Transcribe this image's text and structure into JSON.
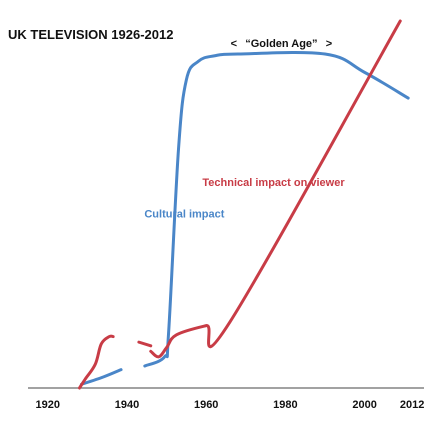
{
  "chart_data": {
    "type": "line",
    "title": "UK TELEVISION 1926-2012",
    "xlabel": "",
    "ylabel": "",
    "x_ticks": [
      {
        "value": 1920,
        "label": "1920"
      },
      {
        "value": 1940,
        "label": "1940"
      },
      {
        "value": 1960,
        "label": "1960"
      },
      {
        "value": 1980,
        "label": "1980"
      },
      {
        "value": 2000,
        "label": "2000"
      },
      {
        "value": 2012,
        "label": "2012"
      }
    ],
    "xlim": [
      1915,
      2015
    ],
    "ylim": [
      0,
      100
    ],
    "grid": false,
    "series": [
      {
        "key": "cultural",
        "name": "Cultural impact",
        "color": "#4a86c8",
        "segments": [
          [
            [
              1928.5,
              1
            ],
            [
              1934,
              3
            ],
            [
              1938.5,
              5
            ]
          ],
          [
            [
              1944.5,
              6
            ],
            [
              1949.5,
              8.5
            ],
            [
              1950.5,
              15
            ],
            [
              1953,
              65
            ],
            [
              1955,
              84
            ],
            [
              1958,
              89
            ],
            [
              1962,
              90.5
            ],
            [
              1968,
              91
            ],
            [
              1990,
              91
            ],
            [
              2000,
              86
            ],
            [
              2011,
              79
            ]
          ]
        ]
      },
      {
        "key": "technical",
        "name": "Technical impact on viewer",
        "color": "#c83c46",
        "segments": [
          [
            [
              1928,
              0
            ],
            [
              1929.5,
              2.5
            ],
            [
              1932,
              6.5
            ],
            [
              1933.5,
              12
            ],
            [
              1935.5,
              14
            ],
            [
              1936.5,
              14
            ]
          ],
          [
            [
              1943,
              12.5
            ],
            [
              1946,
              11.5
            ]
          ],
          [
            [
              1946,
              10
            ],
            [
              1948,
              8.5
            ],
            [
              1950,
              11
            ],
            [
              1952.5,
              14.5
            ],
            [
              1960,
              17
            ],
            [
              1966,
              18
            ],
            [
              2009,
              100
            ]
          ]
        ]
      }
    ],
    "annotations": [
      {
        "key": "golden_age",
        "text": "“Golden Age”",
        "left": "<",
        "right": ">",
        "x_from": 1967,
        "x_to": 1991,
        "y": 94
      },
      {
        "key": "cultural_label",
        "text": "Cultural impact",
        "x": 1954.5,
        "y": 46.5,
        "color": "#4a86c8"
      },
      {
        "key": "technical_label",
        "text": "Technical impact on viewer",
        "x": 1977,
        "y": 55,
        "color": "#c83c46"
      }
    ]
  }
}
